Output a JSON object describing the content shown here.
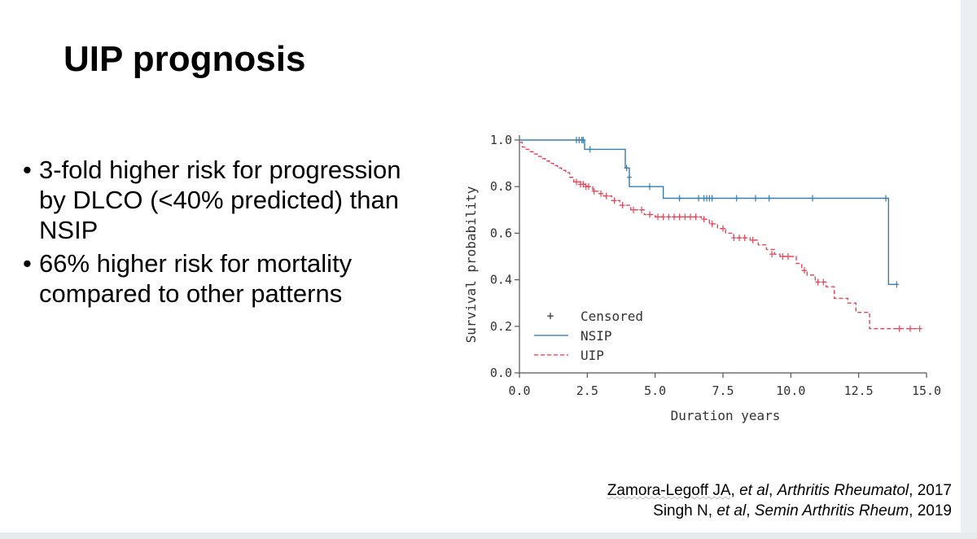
{
  "slide": {
    "title": "UIP prognosis",
    "bullets": [
      "3-fold higher risk for progression by DLCO (<40% predicted) than NSIP",
      "66% higher risk for mortality compared to other patterns"
    ],
    "bullet_glyph": "•",
    "references": [
      {
        "author": "Zamora-Legoff JA",
        "etal": "et al",
        "journal": "Arthritis Rheumatol",
        "year": "2017"
      },
      {
        "author": "Singh N",
        "etal": "et al",
        "journal": "Semin Arthritis Rheum",
        "year": "2019"
      }
    ]
  },
  "colors": {
    "nsip": "#3b7eaa",
    "uip": "#e0485a",
    "axis": "#555555",
    "text": "#000000"
  },
  "chart_data": {
    "type": "line",
    "title": "",
    "xlabel": "Duration years",
    "ylabel": "Survival probability",
    "xlim": [
      0,
      15
    ],
    "ylim": [
      0,
      1
    ],
    "xticks": [
      0,
      2.5,
      5,
      7.5,
      10,
      12.5,
      15
    ],
    "xtick_labels": [
      "0.0",
      "2.5",
      "5.0",
      "7.5",
      "10.0",
      "12.5",
      "15.0"
    ],
    "yticks": [
      0,
      0.2,
      0.4,
      0.6,
      0.8,
      1.0
    ],
    "ytick_labels": [
      "0.0",
      "0.2",
      "0.4",
      "0.6",
      "0.8",
      "1.0"
    ],
    "legend": {
      "position": "bottom-left",
      "entries": [
        {
          "label": "Censored",
          "style": "marker"
        },
        {
          "label": "NSIP",
          "style": "solid"
        },
        {
          "label": "UIP",
          "style": "dashed"
        }
      ],
      "censored_glyph": "+"
    },
    "series": [
      {
        "name": "NSIP",
        "style": "solid",
        "steps": [
          [
            0,
            1.0
          ],
          [
            2.4,
            0.96
          ],
          [
            3.9,
            0.88
          ],
          [
            4.05,
            0.8
          ],
          [
            5.3,
            0.75
          ],
          [
            13.6,
            0.38
          ],
          [
            13.9,
            0.38
          ]
        ],
        "censored": [
          [
            2.1,
            1.0
          ],
          [
            2.2,
            1.0
          ],
          [
            2.3,
            1.0
          ],
          [
            2.35,
            1.0
          ],
          [
            2.6,
            0.96
          ],
          [
            3.95,
            0.88
          ],
          [
            4.05,
            0.84
          ],
          [
            4.8,
            0.8
          ],
          [
            5.9,
            0.75
          ],
          [
            6.6,
            0.75
          ],
          [
            6.8,
            0.75
          ],
          [
            6.9,
            0.75
          ],
          [
            7.0,
            0.75
          ],
          [
            7.1,
            0.75
          ],
          [
            8.0,
            0.75
          ],
          [
            8.7,
            0.75
          ],
          [
            9.2,
            0.75
          ],
          [
            10.8,
            0.75
          ],
          [
            13.5,
            0.75
          ],
          [
            13.9,
            0.38
          ]
        ]
      },
      {
        "name": "UIP",
        "style": "dashed",
        "steps": [
          [
            0,
            0.99
          ],
          [
            0.1,
            0.97
          ],
          [
            0.2,
            0.96
          ],
          [
            0.35,
            0.95
          ],
          [
            0.5,
            0.94
          ],
          [
            0.65,
            0.93
          ],
          [
            0.8,
            0.92
          ],
          [
            0.95,
            0.91
          ],
          [
            1.1,
            0.9
          ],
          [
            1.25,
            0.89
          ],
          [
            1.4,
            0.88
          ],
          [
            1.55,
            0.87
          ],
          [
            1.7,
            0.86
          ],
          [
            1.85,
            0.84
          ],
          [
            2.0,
            0.82
          ],
          [
            2.3,
            0.81
          ],
          [
            2.5,
            0.8
          ],
          [
            2.7,
            0.78
          ],
          [
            2.9,
            0.77
          ],
          [
            3.1,
            0.76
          ],
          [
            3.4,
            0.74
          ],
          [
            3.7,
            0.72
          ],
          [
            4.1,
            0.7
          ],
          [
            4.6,
            0.68
          ],
          [
            5.0,
            0.67
          ],
          [
            6.7,
            0.66
          ],
          [
            7.0,
            0.64
          ],
          [
            7.3,
            0.62
          ],
          [
            7.6,
            0.6
          ],
          [
            7.9,
            0.58
          ],
          [
            8.5,
            0.57
          ],
          [
            8.8,
            0.55
          ],
          [
            9.1,
            0.53
          ],
          [
            9.4,
            0.51
          ],
          [
            9.6,
            0.5
          ],
          [
            10.2,
            0.47
          ],
          [
            10.4,
            0.44
          ],
          [
            10.6,
            0.42
          ],
          [
            10.9,
            0.39
          ],
          [
            11.3,
            0.37
          ],
          [
            11.6,
            0.32
          ],
          [
            12.1,
            0.3
          ],
          [
            12.4,
            0.26
          ],
          [
            12.9,
            0.19
          ],
          [
            14.8,
            0.19
          ]
        ],
        "censored": [
          [
            2.1,
            0.82
          ],
          [
            2.25,
            0.81
          ],
          [
            2.35,
            0.81
          ],
          [
            2.45,
            0.8
          ],
          [
            2.55,
            0.8
          ],
          [
            2.75,
            0.78
          ],
          [
            3.0,
            0.77
          ],
          [
            3.2,
            0.76
          ],
          [
            3.5,
            0.74
          ],
          [
            3.8,
            0.72
          ],
          [
            4.2,
            0.7
          ],
          [
            4.5,
            0.7
          ],
          [
            4.8,
            0.68
          ],
          [
            5.1,
            0.67
          ],
          [
            5.3,
            0.67
          ],
          [
            5.5,
            0.67
          ],
          [
            5.7,
            0.67
          ],
          [
            5.9,
            0.67
          ],
          [
            6.1,
            0.67
          ],
          [
            6.3,
            0.67
          ],
          [
            6.5,
            0.67
          ],
          [
            6.8,
            0.66
          ],
          [
            7.1,
            0.64
          ],
          [
            7.5,
            0.62
          ],
          [
            7.9,
            0.58
          ],
          [
            8.1,
            0.58
          ],
          [
            8.3,
            0.58
          ],
          [
            8.6,
            0.57
          ],
          [
            9.3,
            0.51
          ],
          [
            9.7,
            0.5
          ],
          [
            9.9,
            0.5
          ],
          [
            10.5,
            0.44
          ],
          [
            11.0,
            0.39
          ],
          [
            11.2,
            0.39
          ],
          [
            14.0,
            0.19
          ],
          [
            14.4,
            0.19
          ],
          [
            14.75,
            0.19
          ]
        ]
      }
    ]
  }
}
